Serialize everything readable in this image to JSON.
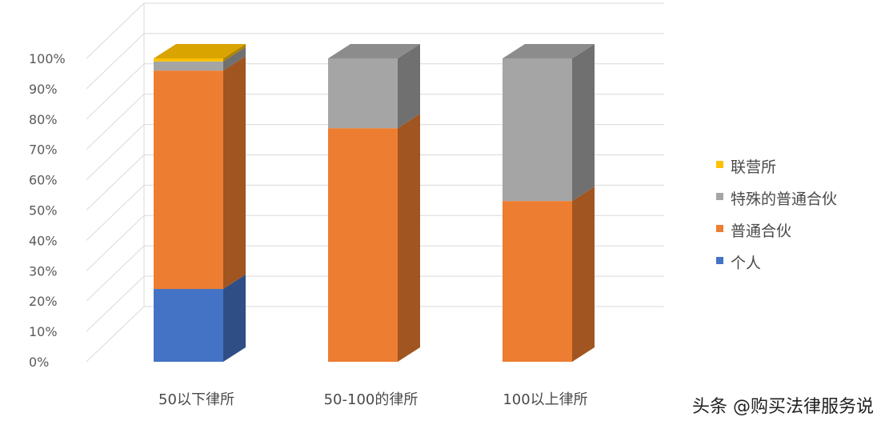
{
  "chart_data": {
    "type": "bar",
    "stacked": true,
    "percent_stacked": true,
    "three_d": true,
    "categories": [
      "50以下律所",
      "50-100的律所",
      "100以上律所"
    ],
    "series": [
      {
        "name": "个人",
        "color": "#4472C4",
        "values": [
          24,
          0,
          0
        ]
      },
      {
        "name": "普通合伙",
        "color": "#ED7D31",
        "values": [
          72,
          77,
          53
        ]
      },
      {
        "name": "特殊的普通合伙",
        "color": "#A5A5A5",
        "values": [
          3,
          23,
          47
        ]
      },
      {
        "name": "联营所",
        "color": "#FFC000",
        "values": [
          1,
          0,
          0
        ]
      }
    ],
    "y_ticks": [
      "0%",
      "10%",
      "20%",
      "30%",
      "40%",
      "50%",
      "60%",
      "70%",
      "80%",
      "90%",
      "100%"
    ],
    "ylim": [
      0,
      100
    ],
    "grid": true,
    "legend_position": "right",
    "legend_order": [
      "联营所",
      "特殊的普通合伙",
      "普通合伙",
      "个人"
    ]
  },
  "watermark": "头条 @购买法律服务说"
}
